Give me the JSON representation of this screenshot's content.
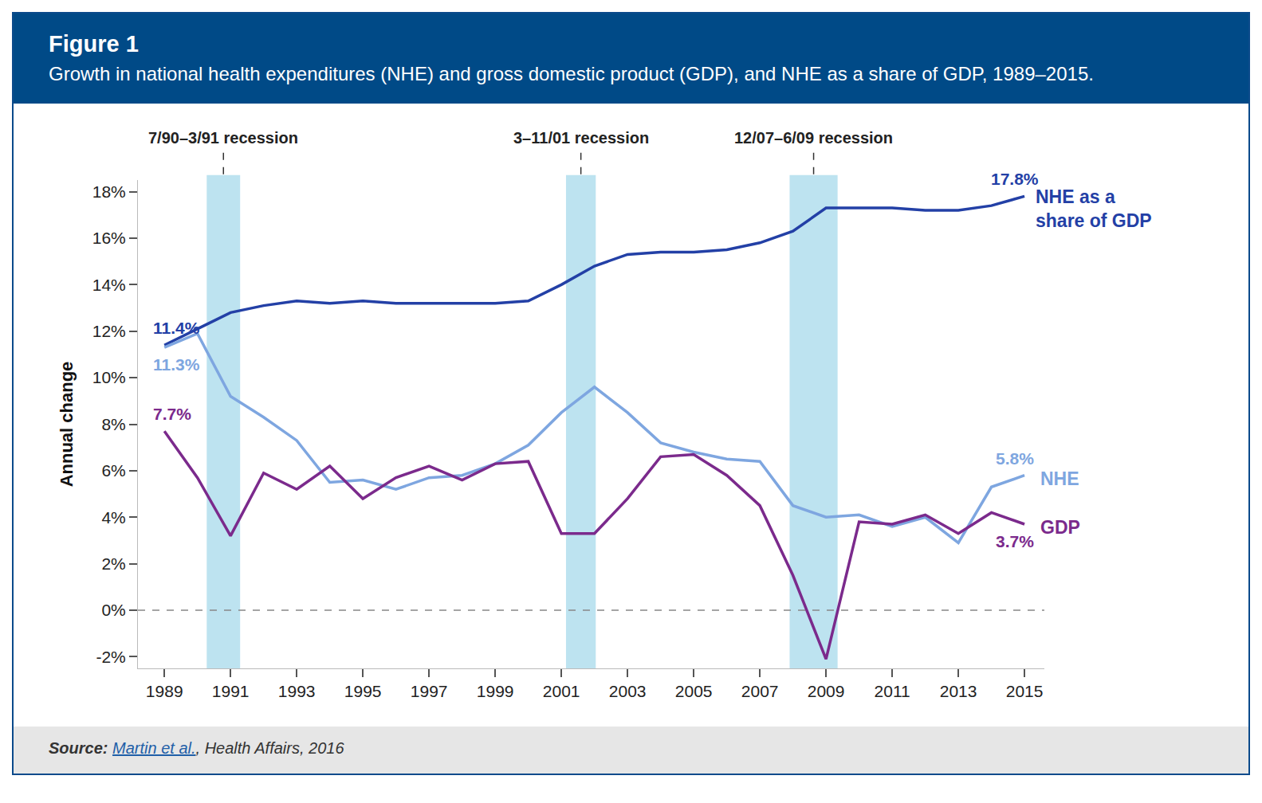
{
  "chart_data": {
    "type": "line",
    "title": "Figure 1",
    "subtitle": "Growth in national health expenditures (NHE) and gross domestic product (GDP), and NHE as a share of GDP, 1989–2015.",
    "y_label": "Annual change",
    "x": [
      1989,
      1990,
      1991,
      1992,
      1993,
      1994,
      1995,
      1996,
      1997,
      1998,
      1999,
      2000,
      2001,
      2002,
      2003,
      2004,
      2005,
      2006,
      2007,
      2008,
      2009,
      2010,
      2011,
      2012,
      2013,
      2014,
      2015
    ],
    "series": [
      {
        "name": "NHE as a\nshare of GDP",
        "color": "#2340a6",
        "values": [
          11.4,
          12.1,
          12.8,
          13.1,
          13.3,
          13.2,
          13.3,
          13.2,
          13.2,
          13.2,
          13.2,
          13.3,
          14.0,
          14.8,
          15.3,
          15.4,
          15.4,
          15.5,
          15.8,
          16.3,
          17.3,
          17.3,
          17.3,
          17.2,
          17.2,
          17.4,
          17.8
        ],
        "value_labels": [
          "11.4%",
          null,
          null,
          null,
          null,
          null,
          null,
          null,
          null,
          null,
          null,
          null,
          null,
          null,
          null,
          null,
          null,
          null,
          null,
          null,
          null,
          null,
          null,
          null,
          null,
          null,
          "17.8%"
        ]
      },
      {
        "name": "NHE",
        "color": "#7ea6e0",
        "values": [
          11.3,
          11.9,
          9.2,
          8.3,
          7.3,
          5.5,
          5.6,
          5.2,
          5.7,
          5.8,
          6.3,
          7.1,
          8.5,
          9.6,
          8.5,
          7.2,
          6.8,
          6.5,
          6.4,
          4.5,
          4.0,
          4.1,
          3.6,
          4.0,
          2.9,
          5.3,
          5.8
        ],
        "value_labels": [
          "11.3%",
          null,
          null,
          null,
          null,
          null,
          null,
          null,
          null,
          null,
          null,
          null,
          null,
          null,
          null,
          null,
          null,
          null,
          null,
          null,
          null,
          null,
          null,
          null,
          null,
          null,
          "5.8%"
        ]
      },
      {
        "name": "GDP",
        "color": "#7b2a8c",
        "values": [
          7.7,
          5.7,
          3.2,
          5.9,
          5.2,
          6.2,
          4.8,
          5.7,
          6.2,
          5.6,
          6.3,
          6.4,
          3.3,
          3.3,
          4.8,
          6.6,
          6.7,
          5.8,
          4.5,
          1.5,
          -2.1,
          3.8,
          3.7,
          4.1,
          3.3,
          4.2,
          3.7
        ],
        "value_labels": [
          "7.7%",
          null,
          null,
          null,
          null,
          null,
          null,
          null,
          null,
          null,
          null,
          null,
          null,
          null,
          null,
          null,
          null,
          null,
          null,
          null,
          null,
          null,
          null,
          null,
          null,
          null,
          "3.7%"
        ]
      }
    ],
    "xlim": [
      1988.2,
      2015.6
    ],
    "xticks": [
      1989,
      1991,
      1993,
      1995,
      1997,
      1999,
      2001,
      2003,
      2005,
      2007,
      2009,
      2011,
      2013,
      2015
    ],
    "ylim": [
      -2.5,
      18.5
    ],
    "yticks": [
      {
        "value": -2,
        "label": "-2%"
      },
      {
        "value": 0,
        "label": "0%"
      },
      {
        "value": 2,
        "label": "2%"
      },
      {
        "value": 4,
        "label": "4%"
      },
      {
        "value": 6,
        "label": "6%"
      },
      {
        "value": 8,
        "label": "8%"
      },
      {
        "value": 10,
        "label": "10%"
      },
      {
        "value": 12,
        "label": "12%"
      },
      {
        "value": 14,
        "label": "14%"
      },
      {
        "value": 16,
        "label": "16%"
      },
      {
        "value": 18,
        "label": "18%"
      }
    ],
    "baseline": 0,
    "recessions": [
      {
        "label": "7/90–3/91 recession",
        "start": 1990.28,
        "end": 1991.29
      },
      {
        "label": "3–11/01 recession",
        "start": 2001.14,
        "end": 2002.04
      },
      {
        "label": "12/07–6/09 recession",
        "start": 2007.9,
        "end": 2009.35
      }
    ],
    "grid": false,
    "source": {
      "prefix": "Source:",
      "link": "Martin et al.",
      "suffix": ", Health Affairs, 2016"
    }
  }
}
